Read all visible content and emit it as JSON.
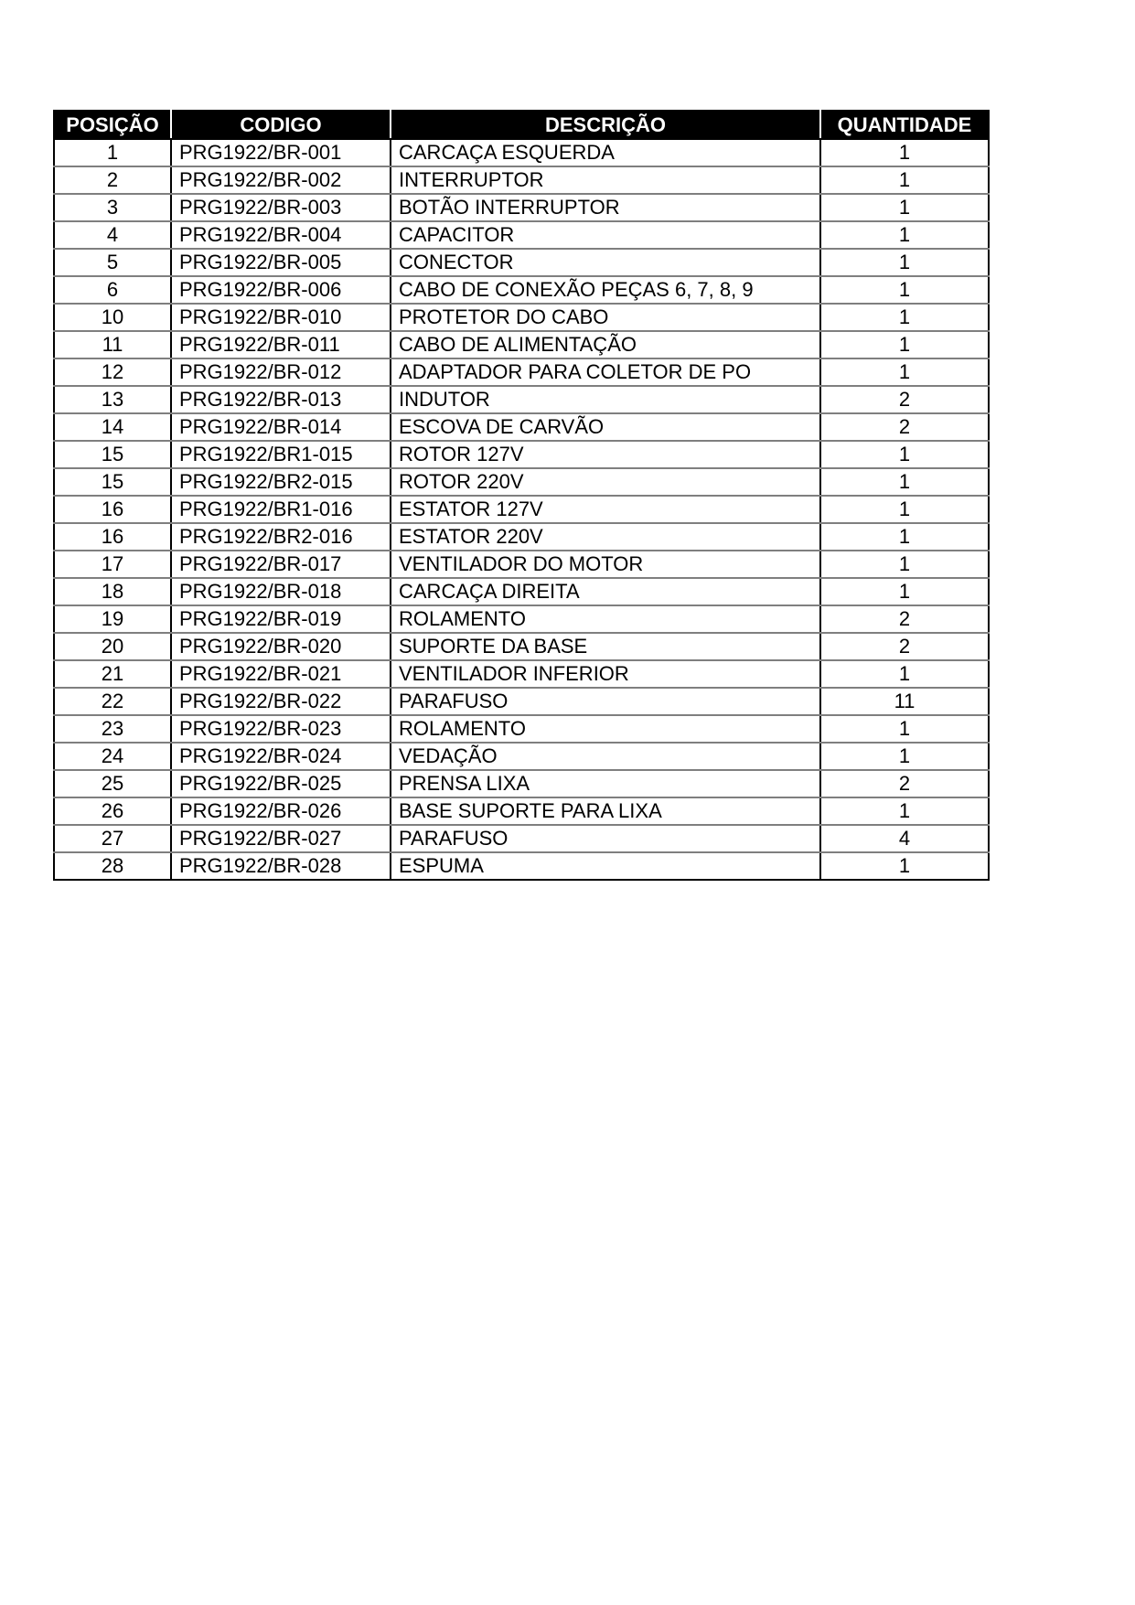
{
  "colors": {
    "page_bg": "#ffffff",
    "header_bg": "#000000",
    "header_text": "#ffffff",
    "grid_vertical": "#000000",
    "grid_horizontal": "#7f7f7f",
    "body_text": "#000000"
  },
  "table": {
    "columns": [
      {
        "key": "posicao",
        "label": "POSIÇÃO"
      },
      {
        "key": "codigo",
        "label": "CODIGO"
      },
      {
        "key": "descricao",
        "label": "DESCRIÇÃO"
      },
      {
        "key": "quantidade",
        "label": "QUANTIDADE"
      }
    ],
    "rows": [
      [
        "1",
        "PRG1922/BR-001",
        "CARCAÇA ESQUERDA",
        "1"
      ],
      [
        "2",
        "PRG1922/BR-002",
        "INTERRUPTOR",
        "1"
      ],
      [
        "3",
        "PRG1922/BR-003",
        "BOTÃO INTERRUPTOR",
        "1"
      ],
      [
        "4",
        "PRG1922/BR-004",
        "CAPACITOR",
        "1"
      ],
      [
        "5",
        "PRG1922/BR-005",
        "CONECTOR",
        "1"
      ],
      [
        "6",
        "PRG1922/BR-006",
        "CABO DE CONEXÃO PEÇAS 6, 7, 8, 9",
        "1"
      ],
      [
        "10",
        "PRG1922/BR-010",
        "PROTETOR DO CABO",
        "1"
      ],
      [
        "11",
        "PRG1922/BR-011",
        "CABO DE ALIMENTAÇÃO",
        "1"
      ],
      [
        "12",
        "PRG1922/BR-012",
        "ADAPTADOR PARA COLETOR DE PO",
        "1"
      ],
      [
        "13",
        "PRG1922/BR-013",
        "INDUTOR",
        "2"
      ],
      [
        "14",
        "PRG1922/BR-014",
        "ESCOVA DE CARVÃO",
        "2"
      ],
      [
        "15",
        "PRG1922/BR1-015",
        "ROTOR 127V",
        "1"
      ],
      [
        "15",
        "PRG1922/BR2-015",
        "ROTOR 220V",
        "1"
      ],
      [
        "16",
        "PRG1922/BR1-016",
        "ESTATOR 127V",
        "1"
      ],
      [
        "16",
        "PRG1922/BR2-016",
        "ESTATOR 220V",
        "1"
      ],
      [
        "17",
        "PRG1922/BR-017",
        "VENTILADOR DO MOTOR",
        "1"
      ],
      [
        "18",
        "PRG1922/BR-018",
        "CARCAÇA DIREITA",
        "1"
      ],
      [
        "19",
        "PRG1922/BR-019",
        "ROLAMENTO",
        "2"
      ],
      [
        "20",
        "PRG1922/BR-020",
        "SUPORTE DA BASE",
        "2"
      ],
      [
        "21",
        "PRG1922/BR-021",
        "VENTILADOR INFERIOR",
        "1"
      ],
      [
        "22",
        "PRG1922/BR-022",
        "PARAFUSO",
        "11"
      ],
      [
        "23",
        "PRG1922/BR-023",
        "ROLAMENTO",
        "1"
      ],
      [
        "24",
        "PRG1922/BR-024",
        "VEDAÇÃO",
        "1"
      ],
      [
        "25",
        "PRG1922/BR-025",
        "PRENSA LIXA",
        "2"
      ],
      [
        "26",
        "PRG1922/BR-026",
        "BASE SUPORTE PARA LIXA",
        "1"
      ],
      [
        "27",
        "PRG1922/BR-027",
        "PARAFUSO",
        "4"
      ],
      [
        "28",
        "PRG1922/BR-028",
        "ESPUMA",
        "1"
      ]
    ]
  }
}
